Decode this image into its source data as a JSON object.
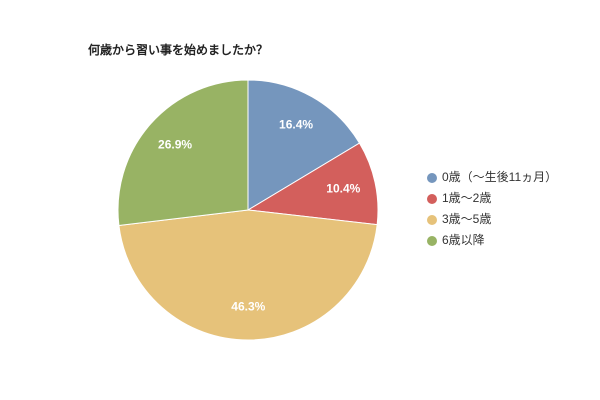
{
  "chart_data": {
    "type": "pie",
    "title": "何歳から習い事を始めましたか？",
    "categories": [
      "0歳（～生後11ヵ月）",
      "1歳～2歳",
      "3歳～5歳",
      "6歳以降"
    ],
    "values": [
      16.4,
      10.4,
      46.3,
      26.9
    ],
    "value_labels": [
      "16.4%",
      "10.4%",
      "46.3%",
      "26.9%"
    ],
    "colors": [
      "#7596bd",
      "#d35f5c",
      "#e6c27a",
      "#98b364"
    ],
    "legend": "right"
  }
}
